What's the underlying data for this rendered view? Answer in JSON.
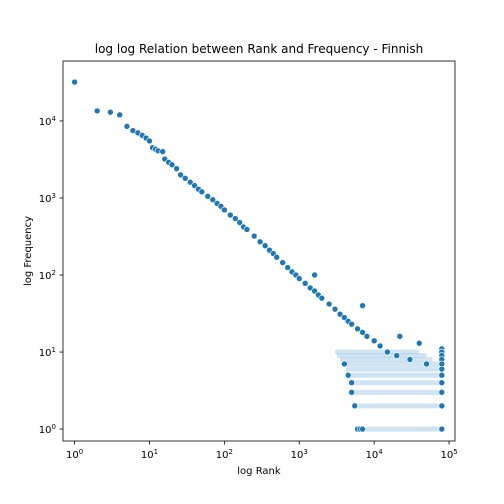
{
  "chart_data": {
    "type": "scatter",
    "title": "log log Relation between Rank and Frequency - Finnish",
    "xlabel": "log Rank",
    "ylabel": "log Frequency",
    "xscale": "log",
    "yscale": "log",
    "xlim": [
      0.7,
      120000
    ],
    "ylim": [
      0.7,
      60000
    ],
    "grid": false,
    "point_color": "#1f77b4",
    "edge_color": "#ffffff",
    "x_ticks": [
      {
        "base": "10",
        "exp": "0",
        "value": 1
      },
      {
        "base": "10",
        "exp": "1",
        "value": 10
      },
      {
        "base": "10",
        "exp": "2",
        "value": 100
      },
      {
        "base": "10",
        "exp": "3",
        "value": 1000
      },
      {
        "base": "10",
        "exp": "4",
        "value": 10000
      },
      {
        "base": "10",
        "exp": "5",
        "value": 100000
      }
    ],
    "y_ticks": [
      {
        "base": "10",
        "exp": "0",
        "value": 1
      },
      {
        "base": "10",
        "exp": "1",
        "value": 10
      },
      {
        "base": "10",
        "exp": "2",
        "value": 100
      },
      {
        "base": "10",
        "exp": "3",
        "value": 1000
      },
      {
        "base": "10",
        "exp": "4",
        "value": 10000
      }
    ],
    "points": [
      [
        1,
        32000
      ],
      [
        2,
        13500
      ],
      [
        3,
        13000
      ],
      [
        4,
        12000
      ],
      [
        5,
        8500
      ],
      [
        6,
        7500
      ],
      [
        7,
        7000
      ],
      [
        8,
        6500
      ],
      [
        9,
        6000
      ],
      [
        10,
        5500
      ],
      [
        11,
        4500
      ],
      [
        12,
        4300
      ],
      [
        13,
        4100
      ],
      [
        15,
        4000
      ],
      [
        16,
        3200
      ],
      [
        18,
        2900
      ],
      [
        20,
        2700
      ],
      [
        23,
        2400
      ],
      [
        26,
        2000
      ],
      [
        30,
        1800
      ],
      [
        35,
        1600
      ],
      [
        40,
        1450
      ],
      [
        45,
        1300
      ],
      [
        50,
        1200
      ],
      [
        60,
        1050
      ],
      [
        70,
        950
      ],
      [
        80,
        850
      ],
      [
        90,
        780
      ],
      [
        100,
        700
      ],
      [
        120,
        600
      ],
      [
        140,
        540
      ],
      [
        160,
        480
      ],
      [
        180,
        420
      ],
      [
        200,
        390
      ],
      [
        250,
        320
      ],
      [
        300,
        270
      ],
      [
        350,
        240
      ],
      [
        400,
        210
      ],
      [
        450,
        190
      ],
      [
        500,
        170
      ],
      [
        600,
        145
      ],
      [
        700,
        125
      ],
      [
        800,
        110
      ],
      [
        900,
        100
      ],
      [
        1000,
        90
      ],
      [
        1200,
        78
      ],
      [
        1400,
        68
      ],
      [
        1600,
        62
      ],
      [
        1800,
        55
      ],
      [
        2000,
        50
      ],
      [
        2500,
        42
      ],
      [
        3000,
        36
      ],
      [
        3500,
        31
      ],
      [
        4000,
        28
      ],
      [
        4500,
        25
      ],
      [
        5000,
        23
      ],
      [
        6000,
        20
      ],
      [
        7000,
        18
      ],
      [
        8000,
        16
      ],
      [
        10000,
        14
      ],
      [
        12000,
        12
      ],
      [
        15000,
        10
      ],
      [
        20000,
        9
      ],
      [
        30000,
        8
      ],
      [
        50000,
        7
      ],
      [
        80000,
        6
      ],
      [
        1600,
        100
      ],
      [
        7000,
        40
      ],
      [
        22000,
        16
      ],
      [
        40000,
        13
      ],
      [
        80000,
        11
      ],
      [
        80000,
        10
      ],
      [
        80000,
        9
      ],
      [
        80000,
        8
      ],
      [
        80000,
        7
      ],
      [
        80000,
        6
      ],
      [
        80000,
        5
      ],
      [
        80000,
        4
      ],
      [
        80000,
        3
      ],
      [
        80000,
        2
      ],
      [
        80000,
        1
      ],
      [
        4500,
        5
      ],
      [
        5000,
        4
      ],
      [
        5000,
        3
      ],
      [
        5500,
        2
      ],
      [
        6000,
        1
      ],
      [
        6500,
        1
      ],
      [
        7000,
        1
      ],
      [
        4000,
        7
      ]
    ],
    "bands": [
      {
        "y": 1,
        "x_start": 6000,
        "x_end": 80000
      },
      {
        "y": 2,
        "x_start": 5500,
        "x_end": 80000
      },
      {
        "y": 3,
        "x_start": 5000,
        "x_end": 80000
      },
      {
        "y": 4,
        "x_start": 5000,
        "x_end": 80000
      },
      {
        "y": 5,
        "x_start": 4500,
        "x_end": 80000
      },
      {
        "y": 6,
        "x_start": 4200,
        "x_end": 80000
      },
      {
        "y": 7,
        "x_start": 4000,
        "x_end": 80000
      },
      {
        "y": 8,
        "x_start": 3500,
        "x_end": 60000
      },
      {
        "y": 9,
        "x_start": 3200,
        "x_end": 50000
      },
      {
        "y": 10,
        "x_start": 3000,
        "x_end": 40000
      }
    ]
  }
}
